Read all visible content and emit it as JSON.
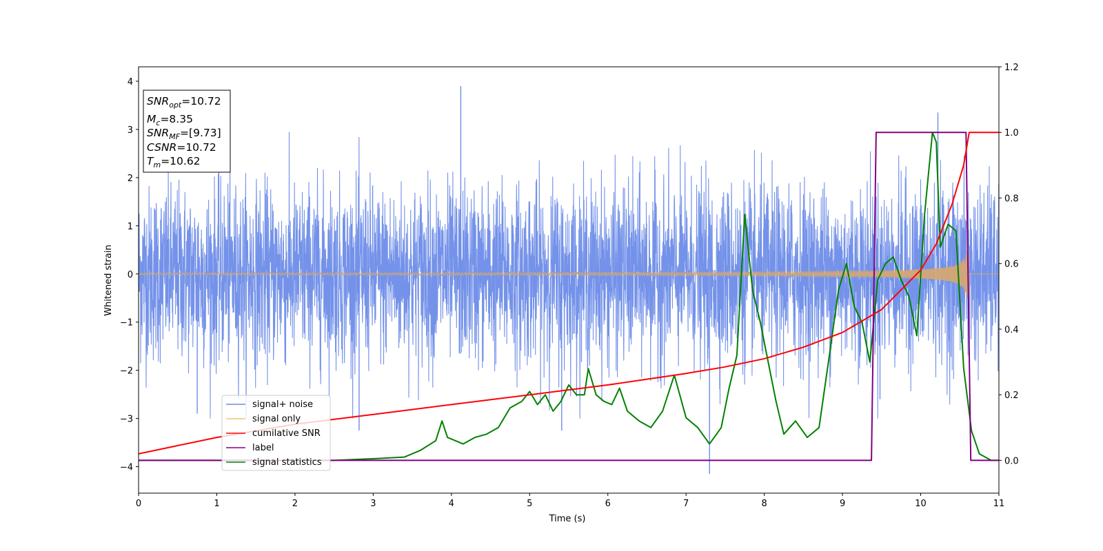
{
  "chart_data": {
    "type": "line",
    "xlabel": "Time (s)",
    "ylabel": "Whitened strain",
    "xlim": [
      0,
      11
    ],
    "ylim": [
      -4.55,
      4.3
    ],
    "y2lim": [
      -0.1,
      1.2
    ],
    "xticks": [
      "0",
      "1",
      "2",
      "3",
      "4",
      "5",
      "6",
      "7",
      "8",
      "9",
      "10",
      "11"
    ],
    "yticks": [
      "4",
      "3",
      "2",
      "1",
      "0",
      "−1",
      "−2",
      "−3",
      "−4"
    ],
    "y2ticks": [
      "1.2",
      "1.0",
      "0.8",
      "0.6",
      "0.4",
      "0.2",
      "0.0"
    ],
    "grid": false,
    "legend_position": "lower-left",
    "annotation": {
      "snr_opt": "=10.72",
      "mc": "=8.35",
      "snr_mf": "=[9.73]",
      "csnr": "=10.72",
      "tm": "=10.62"
    },
    "series": [
      {
        "name": "signal+ noise",
        "axis": "left",
        "color": "#6d8ce8",
        "description": "white-noise-like strain, std about 0.9, peak spikes",
        "spikes": [
          [
            4.12,
            3.9
          ],
          [
            10.22,
            3.35
          ],
          [
            7.3,
            -4.15
          ],
          [
            2.82,
            -3.25
          ],
          [
            5.41,
            -3.25
          ],
          [
            0.75,
            -2.9
          ],
          [
            9.48,
            -2.6
          ]
        ]
      },
      {
        "name": "signal only",
        "axis": "left",
        "color": "#f5c26b",
        "description": "chirp, amplitude about 0.02 at t=0 growing to 0.75 at t=10.62, zero afterwards",
        "start_amp": 0.02,
        "merger_time": 10.62,
        "merger_amp": 0.75
      },
      {
        "name": "cumilative SNR",
        "axis": "right",
        "color": "#ff0000",
        "x": [
          0,
          1,
          2,
          3,
          4,
          5,
          6,
          7,
          7.5,
          8,
          8.5,
          9,
          9.5,
          10,
          10.2,
          10.4,
          10.55,
          10.62,
          11
        ],
        "y": [
          0.02,
          0.07,
          0.11,
          0.14,
          0.17,
          0.2,
          0.23,
          0.265,
          0.285,
          0.31,
          0.345,
          0.39,
          0.46,
          0.58,
          0.66,
          0.78,
          0.9,
          1.0,
          1.0
        ]
      },
      {
        "name": "label",
        "axis": "right",
        "color": "#800080",
        "x": [
          0,
          9.37,
          9.43,
          10.58,
          10.64,
          11
        ],
        "y": [
          0.0,
          0.0,
          1.0,
          1.0,
          0.0,
          0.0
        ]
      },
      {
        "name": "signal statistics",
        "axis": "right",
        "color": "#008000",
        "x": [
          0,
          0.5,
          1,
          1.5,
          2,
          2.5,
          3,
          3.4,
          3.6,
          3.8,
          3.88,
          3.95,
          4.05,
          4.15,
          4.3,
          4.45,
          4.6,
          4.75,
          4.9,
          5.0,
          5.1,
          5.2,
          5.3,
          5.4,
          5.5,
          5.6,
          5.7,
          5.75,
          5.85,
          5.95,
          6.05,
          6.15,
          6.25,
          6.4,
          6.55,
          6.7,
          6.85,
          7.0,
          7.15,
          7.3,
          7.45,
          7.55,
          7.65,
          7.75,
          7.85,
          7.95,
          8.05,
          8.15,
          8.25,
          8.4,
          8.55,
          8.7,
          8.85,
          8.95,
          9.05,
          9.15,
          9.25,
          9.35,
          9.45,
          9.55,
          9.65,
          9.75,
          9.85,
          9.95,
          10.05,
          10.15,
          10.2,
          10.25,
          10.35,
          10.45,
          10.55,
          10.65,
          10.75,
          10.9,
          11
        ],
        "y": [
          0.0,
          0.0,
          0.0,
          0.0,
          0.0,
          0.0,
          0.005,
          0.01,
          0.03,
          0.06,
          0.12,
          0.07,
          0.06,
          0.05,
          0.07,
          0.08,
          0.1,
          0.16,
          0.18,
          0.21,
          0.17,
          0.2,
          0.15,
          0.18,
          0.23,
          0.2,
          0.2,
          0.28,
          0.2,
          0.18,
          0.17,
          0.22,
          0.15,
          0.12,
          0.1,
          0.15,
          0.26,
          0.13,
          0.1,
          0.05,
          0.1,
          0.22,
          0.32,
          0.75,
          0.52,
          0.42,
          0.3,
          0.18,
          0.08,
          0.12,
          0.07,
          0.1,
          0.35,
          0.52,
          0.6,
          0.47,
          0.42,
          0.3,
          0.55,
          0.6,
          0.62,
          0.55,
          0.5,
          0.38,
          0.75,
          1.0,
          0.97,
          0.65,
          0.72,
          0.7,
          0.28,
          0.09,
          0.02,
          0.0,
          0.0
        ]
      }
    ]
  }
}
